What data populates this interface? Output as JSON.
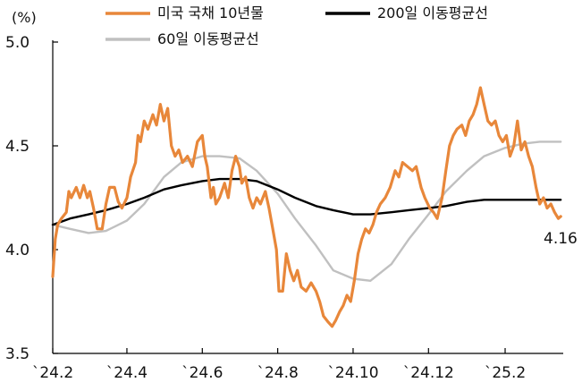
{
  "chart_data": {
    "type": "line",
    "unit": "(%)",
    "ylim": [
      3.5,
      5.0
    ],
    "y_ticks": [
      {
        "value": 5.0,
        "label": "5.0"
      },
      {
        "value": 4.5,
        "label": "4.5"
      },
      {
        "value": 4.0,
        "label": "4.0"
      },
      {
        "value": 3.5,
        "label": "3.5"
      }
    ],
    "xlim": [
      "2024-02-01",
      "2025-03-20"
    ],
    "x_ticks": [
      {
        "date": "2024-02-01",
        "label": "`24.2"
      },
      {
        "date": "2024-04-01",
        "label": "`24.4"
      },
      {
        "date": "2024-06-01",
        "label": "`24.6"
      },
      {
        "date": "2024-08-01",
        "label": "`24.8"
      },
      {
        "date": "2024-10-01",
        "label": "`24.10"
      },
      {
        "date": "2024-12-01",
        "label": "`24.12"
      },
      {
        "date": "2025-02-01",
        "label": "`25.2"
      }
    ],
    "legend": "top",
    "end_label": "4.16",
    "series": [
      {
        "name": "미국 국채 10년물",
        "color": "#e8873a",
        "points": [
          [
            "2024-02-01",
            3.87
          ],
          [
            "2024-02-03",
            4.05
          ],
          [
            "2024-02-05",
            4.12
          ],
          [
            "2024-02-08",
            4.15
          ],
          [
            "2024-02-12",
            4.18
          ],
          [
            "2024-02-14",
            4.28
          ],
          [
            "2024-02-16",
            4.25
          ],
          [
            "2024-02-20",
            4.3
          ],
          [
            "2024-02-23",
            4.25
          ],
          [
            "2024-02-26",
            4.31
          ],
          [
            "2024-02-29",
            4.25
          ],
          [
            "2024-03-02",
            4.28
          ],
          [
            "2024-03-05",
            4.2
          ],
          [
            "2024-03-08",
            4.1
          ],
          [
            "2024-03-12",
            4.1
          ],
          [
            "2024-03-15",
            4.22
          ],
          [
            "2024-03-18",
            4.3
          ],
          [
            "2024-03-22",
            4.3
          ],
          [
            "2024-03-25",
            4.23
          ],
          [
            "2024-03-28",
            4.2
          ],
          [
            "2024-04-01",
            4.25
          ],
          [
            "2024-04-04",
            4.35
          ],
          [
            "2024-04-08",
            4.42
          ],
          [
            "2024-04-10",
            4.55
          ],
          [
            "2024-04-12",
            4.52
          ],
          [
            "2024-04-15",
            4.62
          ],
          [
            "2024-04-18",
            4.58
          ],
          [
            "2024-04-22",
            4.65
          ],
          [
            "2024-04-25",
            4.6
          ],
          [
            "2024-04-28",
            4.7
          ],
          [
            "2024-05-01",
            4.62
          ],
          [
            "2024-05-04",
            4.68
          ],
          [
            "2024-05-07",
            4.5
          ],
          [
            "2024-05-10",
            4.45
          ],
          [
            "2024-05-13",
            4.48
          ],
          [
            "2024-05-16",
            4.42
          ],
          [
            "2024-05-20",
            4.45
          ],
          [
            "2024-05-24",
            4.4
          ],
          [
            "2024-05-28",
            4.52
          ],
          [
            "2024-06-01",
            4.55
          ],
          [
            "2024-06-03",
            4.45
          ],
          [
            "2024-06-05",
            4.4
          ],
          [
            "2024-06-08",
            4.25
          ],
          [
            "2024-06-10",
            4.3
          ],
          [
            "2024-06-12",
            4.22
          ],
          [
            "2024-06-15",
            4.25
          ],
          [
            "2024-06-19",
            4.32
          ],
          [
            "2024-06-22",
            4.25
          ],
          [
            "2024-06-25",
            4.38
          ],
          [
            "2024-06-28",
            4.45
          ],
          [
            "2024-07-01",
            4.4
          ],
          [
            "2024-07-03",
            4.32
          ],
          [
            "2024-07-06",
            4.35
          ],
          [
            "2024-07-09",
            4.25
          ],
          [
            "2024-07-12",
            4.2
          ],
          [
            "2024-07-15",
            4.25
          ],
          [
            "2024-07-18",
            4.22
          ],
          [
            "2024-07-22",
            4.28
          ],
          [
            "2024-07-25",
            4.2
          ],
          [
            "2024-07-28",
            4.1
          ],
          [
            "2024-07-31",
            4.0
          ],
          [
            "2024-08-02",
            3.8
          ],
          [
            "2024-08-05",
            3.8
          ],
          [
            "2024-08-08",
            3.98
          ],
          [
            "2024-08-11",
            3.9
          ],
          [
            "2024-08-14",
            3.85
          ],
          [
            "2024-08-17",
            3.9
          ],
          [
            "2024-08-20",
            3.82
          ],
          [
            "2024-08-24",
            3.8
          ],
          [
            "2024-08-28",
            3.84
          ],
          [
            "2024-09-01",
            3.8
          ],
          [
            "2024-09-04",
            3.75
          ],
          [
            "2024-09-07",
            3.68
          ],
          [
            "2024-09-11",
            3.65
          ],
          [
            "2024-09-14",
            3.63
          ],
          [
            "2024-09-17",
            3.66
          ],
          [
            "2024-09-20",
            3.7
          ],
          [
            "2024-09-23",
            3.73
          ],
          [
            "2024-09-26",
            3.78
          ],
          [
            "2024-09-29",
            3.75
          ],
          [
            "2024-10-02",
            3.85
          ],
          [
            "2024-10-05",
            3.98
          ],
          [
            "2024-10-08",
            4.05
          ],
          [
            "2024-10-11",
            4.1
          ],
          [
            "2024-10-14",
            4.08
          ],
          [
            "2024-10-17",
            4.12
          ],
          [
            "2024-10-20",
            4.18
          ],
          [
            "2024-10-23",
            4.22
          ],
          [
            "2024-10-27",
            4.25
          ],
          [
            "2024-10-31",
            4.3
          ],
          [
            "2024-11-04",
            4.38
          ],
          [
            "2024-11-07",
            4.35
          ],
          [
            "2024-11-10",
            4.42
          ],
          [
            "2024-11-14",
            4.4
          ],
          [
            "2024-11-18",
            4.38
          ],
          [
            "2024-11-21",
            4.4
          ],
          [
            "2024-11-25",
            4.3
          ],
          [
            "2024-11-28",
            4.25
          ],
          [
            "2024-12-02",
            4.2
          ],
          [
            "2024-12-05",
            4.18
          ],
          [
            "2024-12-08",
            4.15
          ],
          [
            "2024-12-12",
            4.25
          ],
          [
            "2024-12-15",
            4.38
          ],
          [
            "2024-12-18",
            4.5
          ],
          [
            "2024-12-21",
            4.55
          ],
          [
            "2024-12-24",
            4.58
          ],
          [
            "2024-12-28",
            4.6
          ],
          [
            "2024-12-31",
            4.55
          ],
          [
            "2025-01-03",
            4.62
          ],
          [
            "2025-01-06",
            4.65
          ],
          [
            "2025-01-09",
            4.7
          ],
          [
            "2025-01-12",
            4.78
          ],
          [
            "2025-01-15",
            4.7
          ],
          [
            "2025-01-18",
            4.62
          ],
          [
            "2025-01-21",
            4.6
          ],
          [
            "2025-01-24",
            4.62
          ],
          [
            "2025-01-27",
            4.55
          ],
          [
            "2025-01-30",
            4.52
          ],
          [
            "2025-02-02",
            4.55
          ],
          [
            "2025-02-05",
            4.45
          ],
          [
            "2025-02-08",
            4.5
          ],
          [
            "2025-02-11",
            4.62
          ],
          [
            "2025-02-14",
            4.48
          ],
          [
            "2025-02-17",
            4.52
          ],
          [
            "2025-02-20",
            4.45
          ],
          [
            "2025-02-23",
            4.4
          ],
          [
            "2025-02-26",
            4.3
          ],
          [
            "2025-03-01",
            4.22
          ],
          [
            "2025-03-04",
            4.25
          ],
          [
            "2025-03-07",
            4.2
          ],
          [
            "2025-03-10",
            4.22
          ],
          [
            "2025-03-13",
            4.18
          ],
          [
            "2025-03-16",
            4.15
          ],
          [
            "2025-03-18",
            4.16
          ]
        ]
      },
      {
        "name": "200일 이동평균선",
        "color": "#000000",
        "points": [
          [
            "2024-02-01",
            4.12
          ],
          [
            "2024-02-15",
            4.15
          ],
          [
            "2024-03-01",
            4.17
          ],
          [
            "2024-03-15",
            4.19
          ],
          [
            "2024-04-01",
            4.22
          ],
          [
            "2024-04-15",
            4.25
          ],
          [
            "2024-05-01",
            4.29
          ],
          [
            "2024-05-15",
            4.31
          ],
          [
            "2024-06-01",
            4.33
          ],
          [
            "2024-06-15",
            4.34
          ],
          [
            "2024-07-01",
            4.34
          ],
          [
            "2024-07-15",
            4.33
          ],
          [
            "2024-08-01",
            4.29
          ],
          [
            "2024-08-15",
            4.25
          ],
          [
            "2024-09-01",
            4.21
          ],
          [
            "2024-09-15",
            4.19
          ],
          [
            "2024-10-01",
            4.17
          ],
          [
            "2024-10-15",
            4.17
          ],
          [
            "2024-11-01",
            4.18
          ],
          [
            "2024-11-15",
            4.19
          ],
          [
            "2024-12-01",
            4.2
          ],
          [
            "2024-12-15",
            4.21
          ],
          [
            "2025-01-01",
            4.23
          ],
          [
            "2025-01-15",
            4.24
          ],
          [
            "2025-02-01",
            4.24
          ],
          [
            "2025-02-15",
            4.24
          ],
          [
            "2025-03-01",
            4.24
          ],
          [
            "2025-03-18",
            4.24
          ]
        ]
      },
      {
        "name": "60일 이동평균선",
        "color": "#c0c0c0",
        "points": [
          [
            "2024-02-01",
            4.12
          ],
          [
            "2024-02-15",
            4.1
          ],
          [
            "2024-03-01",
            4.08
          ],
          [
            "2024-03-15",
            4.09
          ],
          [
            "2024-04-01",
            4.14
          ],
          [
            "2024-04-15",
            4.22
          ],
          [
            "2024-05-01",
            4.35
          ],
          [
            "2024-05-15",
            4.42
          ],
          [
            "2024-06-01",
            4.45
          ],
          [
            "2024-06-15",
            4.45
          ],
          [
            "2024-07-01",
            4.44
          ],
          [
            "2024-07-15",
            4.38
          ],
          [
            "2024-08-01",
            4.27
          ],
          [
            "2024-08-15",
            4.15
          ],
          [
            "2024-09-01",
            4.02
          ],
          [
            "2024-09-15",
            3.9
          ],
          [
            "2024-10-01",
            3.86
          ],
          [
            "2024-10-15",
            3.85
          ],
          [
            "2024-11-01",
            3.93
          ],
          [
            "2024-11-15",
            4.05
          ],
          [
            "2024-12-01",
            4.17
          ],
          [
            "2024-12-15",
            4.28
          ],
          [
            "2025-01-01",
            4.38
          ],
          [
            "2025-01-15",
            4.45
          ],
          [
            "2025-02-01",
            4.49
          ],
          [
            "2025-02-15",
            4.51
          ],
          [
            "2025-03-01",
            4.52
          ],
          [
            "2025-03-18",
            4.52
          ]
        ]
      }
    ]
  }
}
